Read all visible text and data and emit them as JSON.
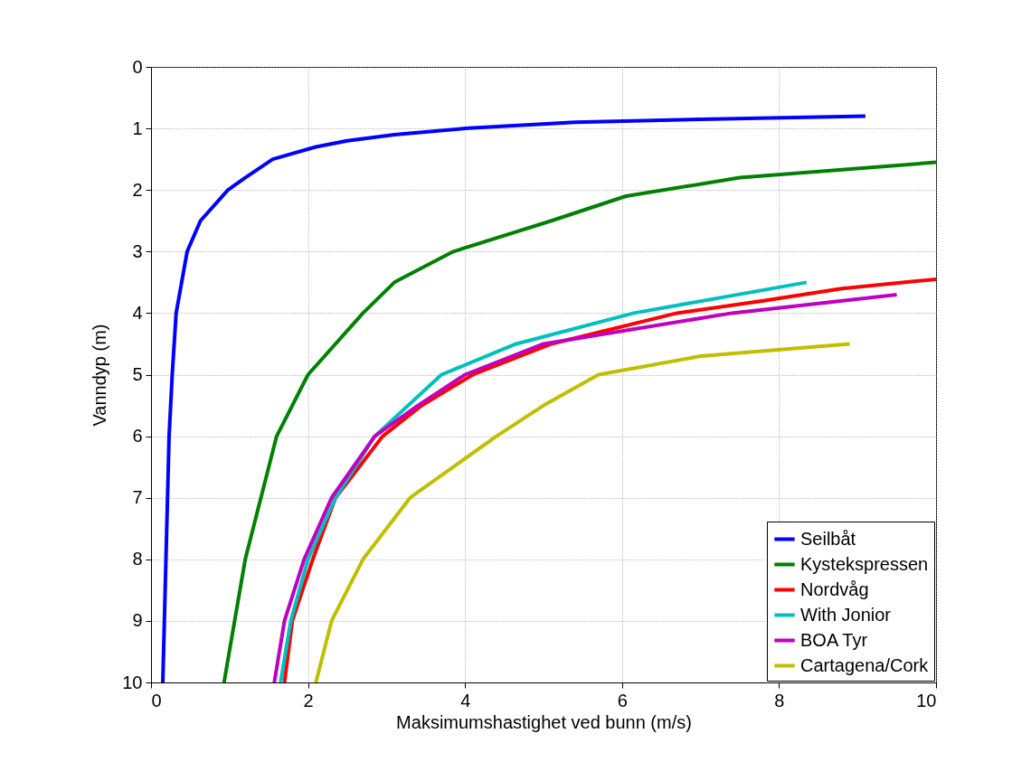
{
  "chart_data": {
    "type": "line",
    "xlabel": "Maksimumshastighet ved bunn (m/s)",
    "ylabel": "Vanndyp (m)",
    "xlim": [
      0,
      10
    ],
    "ylim": [
      10,
      0
    ],
    "xticks": [
      0,
      2,
      4,
      6,
      8,
      10
    ],
    "yticks": [
      0,
      1,
      2,
      3,
      4,
      5,
      6,
      7,
      8,
      9,
      10
    ],
    "grid": true,
    "legend": "bottom right",
    "line_style": "solid",
    "marker": "none",
    "series": [
      {
        "name": "Seilbåt",
        "color": "#0000ff",
        "x": [
          0.15,
          0.19,
          0.23,
          0.27,
          0.32,
          0.46,
          0.63,
          0.98,
          1.2,
          1.55,
          2.1,
          2.5,
          3.1,
          4.0,
          5.4,
          7.0,
          9.1
        ],
        "values": [
          10,
          8,
          6,
          5,
          4,
          3,
          2.5,
          2,
          1.8,
          1.5,
          1.3,
          1.2,
          1.1,
          1.0,
          0.9,
          0.85,
          0.8
        ]
      },
      {
        "name": "Kystekspressen",
        "color": "#008000",
        "x": [
          0.93,
          1.2,
          1.6,
          2.0,
          2.7,
          3.1,
          3.85,
          5.1,
          6.05,
          7.5,
          10
        ],
        "values": [
          10,
          8,
          6,
          5,
          4,
          3.5,
          3,
          2.5,
          2.1,
          1.8,
          1.55
        ]
      },
      {
        "name": "Nordvåg",
        "color": "#ff0000",
        "x": [
          1.7,
          1.8,
          2.06,
          2.35,
          2.95,
          3.45,
          4.1,
          5.1,
          6.7,
          7.8,
          8.8,
          10
        ],
        "values": [
          10,
          9,
          8,
          7,
          6,
          5.5,
          5,
          4.5,
          4,
          3.8,
          3.6,
          3.45
        ]
      },
      {
        "name": "With Jonior",
        "color": "#00bfbf",
        "x": [
          1.65,
          1.78,
          2.0,
          2.35,
          2.85,
          3.7,
          4.65,
          6.15,
          8.35
        ],
        "values": [
          10,
          9,
          8,
          7,
          6,
          5,
          4.5,
          4,
          3.5
        ]
      },
      {
        "name": "BOA Tyr",
        "color": "#bf00bf",
        "x": [
          1.57,
          1.7,
          1.95,
          2.3,
          2.85,
          3.4,
          4.0,
          5.0,
          7.4,
          9.5
        ],
        "values": [
          10,
          9,
          8,
          7,
          6,
          5.5,
          5,
          4.5,
          4,
          3.7
        ]
      },
      {
        "name": "Cartagena/Cork",
        "color": "#bfbf00",
        "x": [
          2.1,
          2.3,
          2.7,
          3.3,
          4.4,
          5.0,
          5.7,
          7.0,
          8.9
        ],
        "values": [
          10,
          9,
          8,
          7,
          6,
          5.5,
          5,
          4.7,
          4.5
        ]
      }
    ]
  }
}
